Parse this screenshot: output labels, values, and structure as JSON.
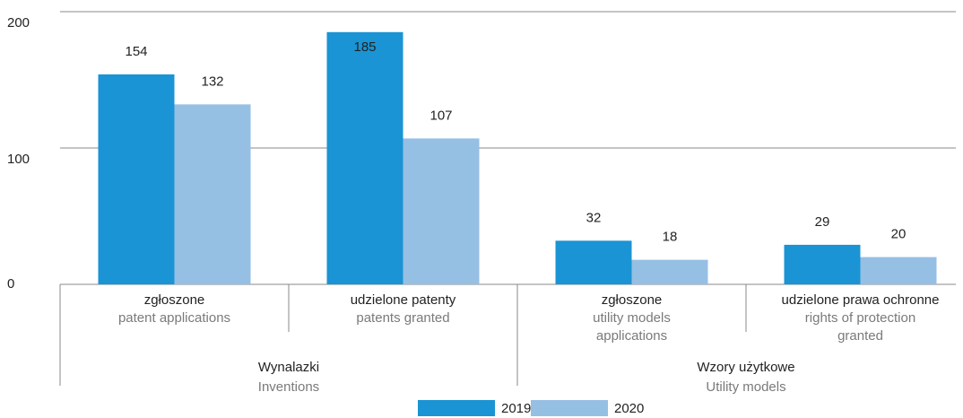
{
  "chart_data": {
    "type": "bar",
    "categories": [
      "zgłoszone",
      "udzielone patenty",
      "zgłoszone",
      "udzielone prawa ochronne"
    ],
    "category_translations": [
      "patent applications",
      "patents granted",
      "utility models applications",
      "rights of protection granted"
    ],
    "groups": [
      {
        "name": "Wynalazki",
        "translation": "Inventions",
        "span": 2
      },
      {
        "name": "Wzory użytkowe",
        "translation": "Utility models",
        "span": 2
      }
    ],
    "series": [
      {
        "name": "2019",
        "color": "#1a94d4",
        "values": [
          154,
          185,
          32,
          29
        ]
      },
      {
        "name": "2020",
        "color": "#96bfe4",
        "values": [
          132,
          107,
          18,
          20
        ]
      }
    ],
    "ylim": [
      0,
      200
    ],
    "yticks": [
      0,
      100,
      200
    ],
    "grid": true,
    "legend": "bottom"
  }
}
